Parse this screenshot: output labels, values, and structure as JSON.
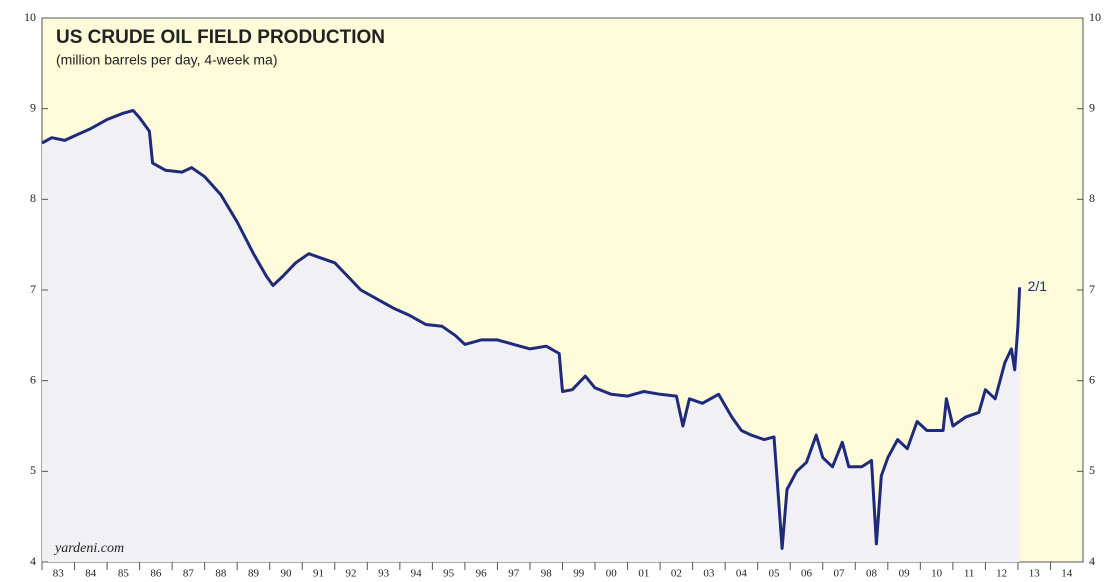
{
  "chart_data": {
    "type": "line",
    "title": "US CRUDE OIL FIELD PRODUCTION",
    "subtitle": "(million barrels per day, 4-week ma)",
    "source": "yardeni.com",
    "annotation": "2/1",
    "xlim": [
      1983,
      2015
    ],
    "xticks": [
      {
        "value": 1983,
        "label": "83"
      },
      {
        "value": 1984,
        "label": "84"
      },
      {
        "value": 1985,
        "label": "85"
      },
      {
        "value": 1986,
        "label": "86"
      },
      {
        "value": 1987,
        "label": "87"
      },
      {
        "value": 1988,
        "label": "88"
      },
      {
        "value": 1989,
        "label": "89"
      },
      {
        "value": 1990,
        "label": "90"
      },
      {
        "value": 1991,
        "label": "91"
      },
      {
        "value": 1992,
        "label": "92"
      },
      {
        "value": 1993,
        "label": "93"
      },
      {
        "value": 1994,
        "label": "94"
      },
      {
        "value": 1995,
        "label": "95"
      },
      {
        "value": 1996,
        "label": "96"
      },
      {
        "value": 1997,
        "label": "97"
      },
      {
        "value": 1998,
        "label": "98"
      },
      {
        "value": 1999,
        "label": "99"
      },
      {
        "value": 2000,
        "label": "00"
      },
      {
        "value": 2001,
        "label": "01"
      },
      {
        "value": 2002,
        "label": "02"
      },
      {
        "value": 2003,
        "label": "03"
      },
      {
        "value": 2004,
        "label": "04"
      },
      {
        "value": 2005,
        "label": "05"
      },
      {
        "value": 2006,
        "label": "06"
      },
      {
        "value": 2007,
        "label": "07"
      },
      {
        "value": 2008,
        "label": "08"
      },
      {
        "value": 2009,
        "label": "09"
      },
      {
        "value": 2010,
        "label": "10"
      },
      {
        "value": 2011,
        "label": "11"
      },
      {
        "value": 2012,
        "label": "12"
      },
      {
        "value": 2013,
        "label": "13"
      },
      {
        "value": 2014,
        "label": "14"
      }
    ],
    "ylim": [
      4,
      10
    ],
    "yticks": [
      4,
      5,
      6,
      7,
      8,
      9,
      10
    ],
    "y2lim": [
      4,
      10
    ],
    "y2ticks": [
      4,
      5,
      6,
      7,
      8,
      9,
      10
    ],
    "plot_background": "#fdfbd9",
    "fill_color": "#f1f1f5",
    "series": [
      {
        "name": "US crude oil field production",
        "color": "#1f2a7a",
        "x": [
          1983.0,
          1983.3,
          1983.7,
          1984.0,
          1984.5,
          1985.0,
          1985.5,
          1985.8,
          1986.0,
          1986.3,
          1986.4,
          1986.8,
          1987.3,
          1987.6,
          1988.0,
          1988.5,
          1989.0,
          1989.5,
          1989.9,
          1990.1,
          1990.4,
          1990.8,
          1991.2,
          1991.6,
          1992.0,
          1992.4,
          1992.8,
          1993.3,
          1993.8,
          1994.3,
          1994.8,
          1995.3,
          1995.7,
          1996.0,
          1996.5,
          1997.0,
          1997.5,
          1998.0,
          1998.5,
          1998.9,
          1999.0,
          1999.3,
          1999.7,
          2000.0,
          2000.5,
          2001.0,
          2001.5,
          2002.0,
          2002.5,
          2002.7,
          2002.9,
          2003.3,
          2003.8,
          2004.2,
          2004.5,
          2004.8,
          2005.2,
          2005.5,
          2005.6,
          2005.75,
          2005.9,
          2006.2,
          2006.5,
          2006.8,
          2007.0,
          2007.3,
          2007.6,
          2007.8,
          2008.2,
          2008.5,
          2008.65,
          2008.8,
          2009.0,
          2009.3,
          2009.6,
          2009.9,
          2010.2,
          2010.5,
          2010.7,
          2010.8,
          2011.0,
          2011.4,
          2011.8,
          2012.0,
          2012.3,
          2012.6,
          2012.8,
          2012.9,
          2013.0,
          2013.05
        ],
        "values": [
          8.62,
          8.68,
          8.65,
          8.7,
          8.78,
          8.88,
          8.95,
          8.98,
          8.9,
          8.75,
          8.4,
          8.32,
          8.3,
          8.35,
          8.25,
          8.05,
          7.75,
          7.4,
          7.15,
          7.05,
          7.15,
          7.3,
          7.4,
          7.35,
          7.3,
          7.15,
          7.0,
          6.9,
          6.8,
          6.72,
          6.62,
          6.6,
          6.5,
          6.4,
          6.45,
          6.45,
          6.4,
          6.35,
          6.38,
          6.3,
          5.88,
          5.9,
          6.05,
          5.92,
          5.85,
          5.83,
          5.88,
          5.85,
          5.83,
          5.5,
          5.8,
          5.75,
          5.85,
          5.6,
          5.45,
          5.4,
          5.35,
          5.38,
          4.9,
          4.15,
          4.8,
          5.0,
          5.1,
          5.4,
          5.15,
          5.05,
          5.32,
          5.05,
          5.05,
          5.12,
          4.2,
          4.95,
          5.15,
          5.35,
          5.25,
          5.55,
          5.45,
          5.45,
          5.45,
          5.8,
          5.5,
          5.6,
          5.65,
          5.9,
          5.8,
          6.2,
          6.35,
          6.12,
          6.6,
          7.03
        ]
      }
    ]
  }
}
